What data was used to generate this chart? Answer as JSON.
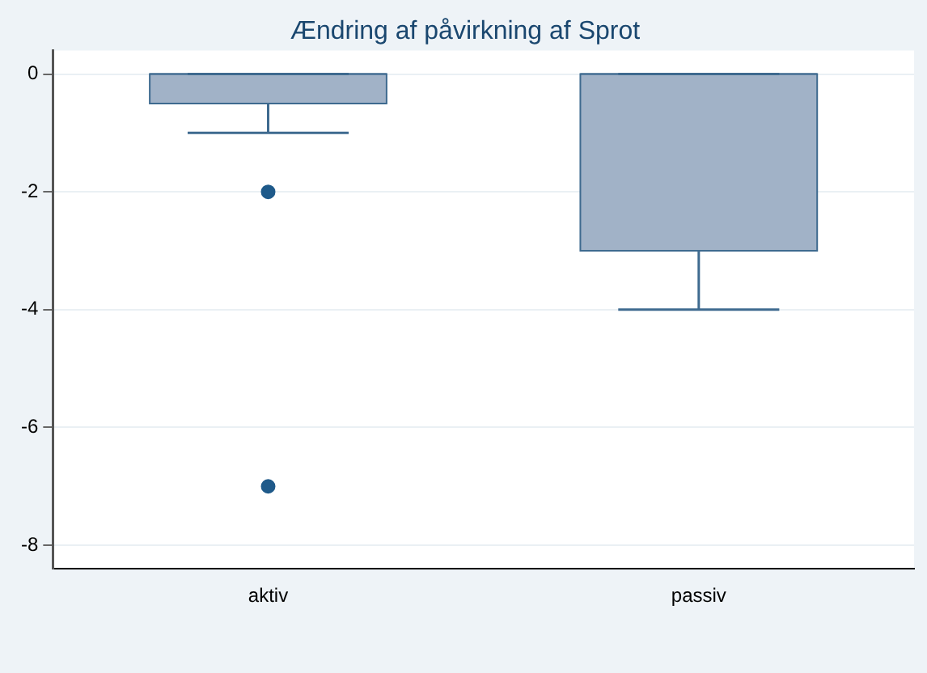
{
  "chart_data": {
    "type": "box",
    "title": "Ændring af påvirkning af Sprot",
    "categories": [
      "aktiv",
      "passiv"
    ],
    "boxes": [
      {
        "low": -1,
        "q1": -0.5,
        "median": 0,
        "q3": 0,
        "high": 0,
        "outliers": [
          -2,
          -7
        ]
      },
      {
        "low": -4,
        "q1": -3,
        "median": 0,
        "q3": 0,
        "high": 0
      }
    ],
    "color": "#a1b2c7",
    "ylim": [
      -8.4,
      0.4
    ],
    "yticks": [
      0,
      -2,
      -4,
      -6,
      -8
    ],
    "grid": "y",
    "legend": false,
    "marker": "circle"
  }
}
